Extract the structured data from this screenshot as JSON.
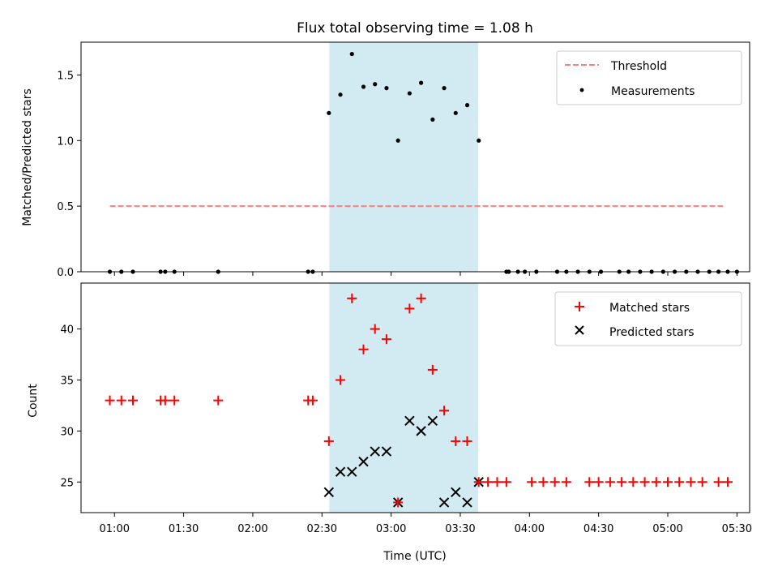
{
  "chart_data": {
    "type": "scatter",
    "title": "Flux total observing time = 1.08 h",
    "xlabel": "Time (UTC)",
    "x_ticks": [
      "01:00",
      "01:30",
      "02:00",
      "02:30",
      "03:00",
      "03:30",
      "04:00",
      "04:30",
      "05:00",
      "05:30"
    ],
    "x_tick_minutes": [
      60,
      90,
      120,
      150,
      180,
      210,
      240,
      270,
      300,
      330
    ],
    "xlim_minutes": [
      45.5,
      335.5
    ],
    "observing_window_minutes": [
      153.2,
      217.8
    ],
    "colors": {
      "band": "#add8e6",
      "threshold": "#ff7f7f",
      "measurement": "#000000",
      "matched": "#ff0000",
      "predicted": "#000000"
    },
    "panels": [
      {
        "ylabel": "Matched/Predicted stars",
        "ylim": [
          0,
          1.75
        ],
        "y_ticks": [
          "0.0",
          "0.5",
          "1.0",
          "1.5"
        ],
        "y_tick_values": [
          0,
          0.5,
          1.0,
          1.5
        ],
        "legend": [
          "Threshold",
          "Measurements"
        ],
        "threshold": {
          "value": 0.5,
          "x_start": 58,
          "x_end": 324
        },
        "measurements": {
          "x": [
            58,
            63,
            68,
            80,
            82,
            86,
            105,
            144,
            146,
            153,
            158,
            163,
            168,
            173,
            178,
            183,
            188,
            193,
            198,
            203,
            208,
            213,
            218,
            230,
            231,
            235,
            238,
            243,
            252,
            256,
            261,
            266,
            271,
            279,
            283,
            288,
            293,
            298,
            303,
            308,
            313,
            318,
            322,
            326,
            330
          ],
          "y": [
            0,
            0,
            0,
            0,
            0,
            0,
            0,
            0,
            0,
            1.21,
            1.35,
            1.66,
            1.41,
            1.43,
            1.4,
            1.0,
            1.36,
            1.44,
            1.16,
            1.4,
            1.21,
            1.27,
            1.0,
            0,
            0,
            0,
            0,
            0,
            0,
            0,
            0,
            0,
            0,
            0,
            0,
            0,
            0,
            0,
            0,
            0,
            0,
            0,
            0,
            0,
            0
          ]
        }
      },
      {
        "ylabel": "Count",
        "ylim": [
          22,
          44.5
        ],
        "y_ticks": [
          "25",
          "30",
          "35",
          "40"
        ],
        "y_tick_values": [
          25,
          30,
          35,
          40
        ],
        "legend": [
          "Matched stars",
          "Predicted stars"
        ],
        "matched": {
          "x": [
            58,
            63,
            68,
            80,
            82,
            86,
            105,
            144,
            146,
            153,
            158,
            163,
            168,
            173,
            178,
            183,
            188,
            193,
            198,
            203,
            208,
            213,
            218,
            222,
            226,
            230,
            241,
            246,
            251,
            256,
            266,
            270,
            275,
            280,
            285,
            290,
            295,
            300,
            305,
            310,
            315,
            322,
            326
          ],
          "y": [
            33,
            33,
            33,
            33,
            33,
            33,
            33,
            33,
            33,
            29,
            35,
            43,
            38,
            40,
            39,
            23,
            42,
            43,
            36,
            32,
            29,
            29,
            25,
            25,
            25,
            25,
            25,
            25,
            25,
            25,
            25,
            25,
            25,
            25,
            25,
            25,
            25,
            25,
            25,
            25,
            25,
            25,
            25
          ]
        },
        "predicted": {
          "x": [
            153,
            158,
            163,
            168,
            173,
            178,
            183,
            188,
            193,
            198,
            203,
            208,
            213,
            218
          ],
          "y": [
            24,
            26,
            26,
            27,
            28,
            28,
            23,
            31,
            30,
            31,
            23,
            24,
            23,
            25
          ]
        }
      }
    ]
  }
}
